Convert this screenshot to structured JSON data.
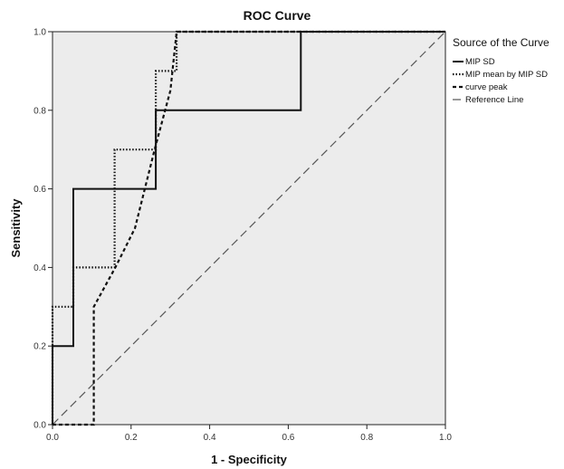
{
  "chart_data": {
    "type": "line",
    "title": "ROC Curve",
    "xlabel": "1 - Specificity",
    "ylabel": "Sensitivity",
    "xlim": [
      0,
      1
    ],
    "ylim": [
      0,
      1
    ],
    "x_ticks": [
      "0.0",
      "0.2",
      "0.4",
      "0.6",
      "0.8",
      "1.0"
    ],
    "y_ticks": [
      "0.0",
      "0.2",
      "0.4",
      "0.6",
      "0.8",
      "1.0"
    ],
    "grid": false,
    "legend": {
      "title": "Source of the Curve",
      "position": "right"
    },
    "series": [
      {
        "name": "MIP SD",
        "style": "solid",
        "color": "#111111",
        "points": [
          [
            0,
            0
          ],
          [
            0,
            0.2
          ],
          [
            0.053,
            0.2
          ],
          [
            0.053,
            0.6
          ],
          [
            0.263,
            0.6
          ],
          [
            0.263,
            0.8
          ],
          [
            0.632,
            0.8
          ],
          [
            0.632,
            1.0
          ],
          [
            1.0,
            1.0
          ]
        ]
      },
      {
        "name": "MIP mean by MIP SD",
        "style": "dotted",
        "color": "#111111",
        "points": [
          [
            0,
            0
          ],
          [
            0,
            0.3
          ],
          [
            0.053,
            0.3
          ],
          [
            0.053,
            0.4
          ],
          [
            0.158,
            0.4
          ],
          [
            0.158,
            0.7
          ],
          [
            0.263,
            0.7
          ],
          [
            0.263,
            0.9
          ],
          [
            0.316,
            0.9
          ],
          [
            0.316,
            1.0
          ],
          [
            1.0,
            1.0
          ]
        ]
      },
      {
        "name": "curve peak",
        "style": "dashed",
        "color": "#111111",
        "points": [
          [
            0,
            0
          ],
          [
            0.105,
            0
          ],
          [
            0.105,
            0.3
          ],
          [
            0.16,
            0.4
          ],
          [
            0.21,
            0.5
          ],
          [
            0.26,
            0.7
          ],
          [
            0.3,
            0.85
          ],
          [
            0.316,
            1.0
          ],
          [
            1.0,
            1.0
          ]
        ]
      },
      {
        "name": "Reference Line",
        "style": "longdash",
        "color": "#555555",
        "points": [
          [
            0,
            0
          ],
          [
            1,
            1
          ]
        ]
      }
    ]
  }
}
